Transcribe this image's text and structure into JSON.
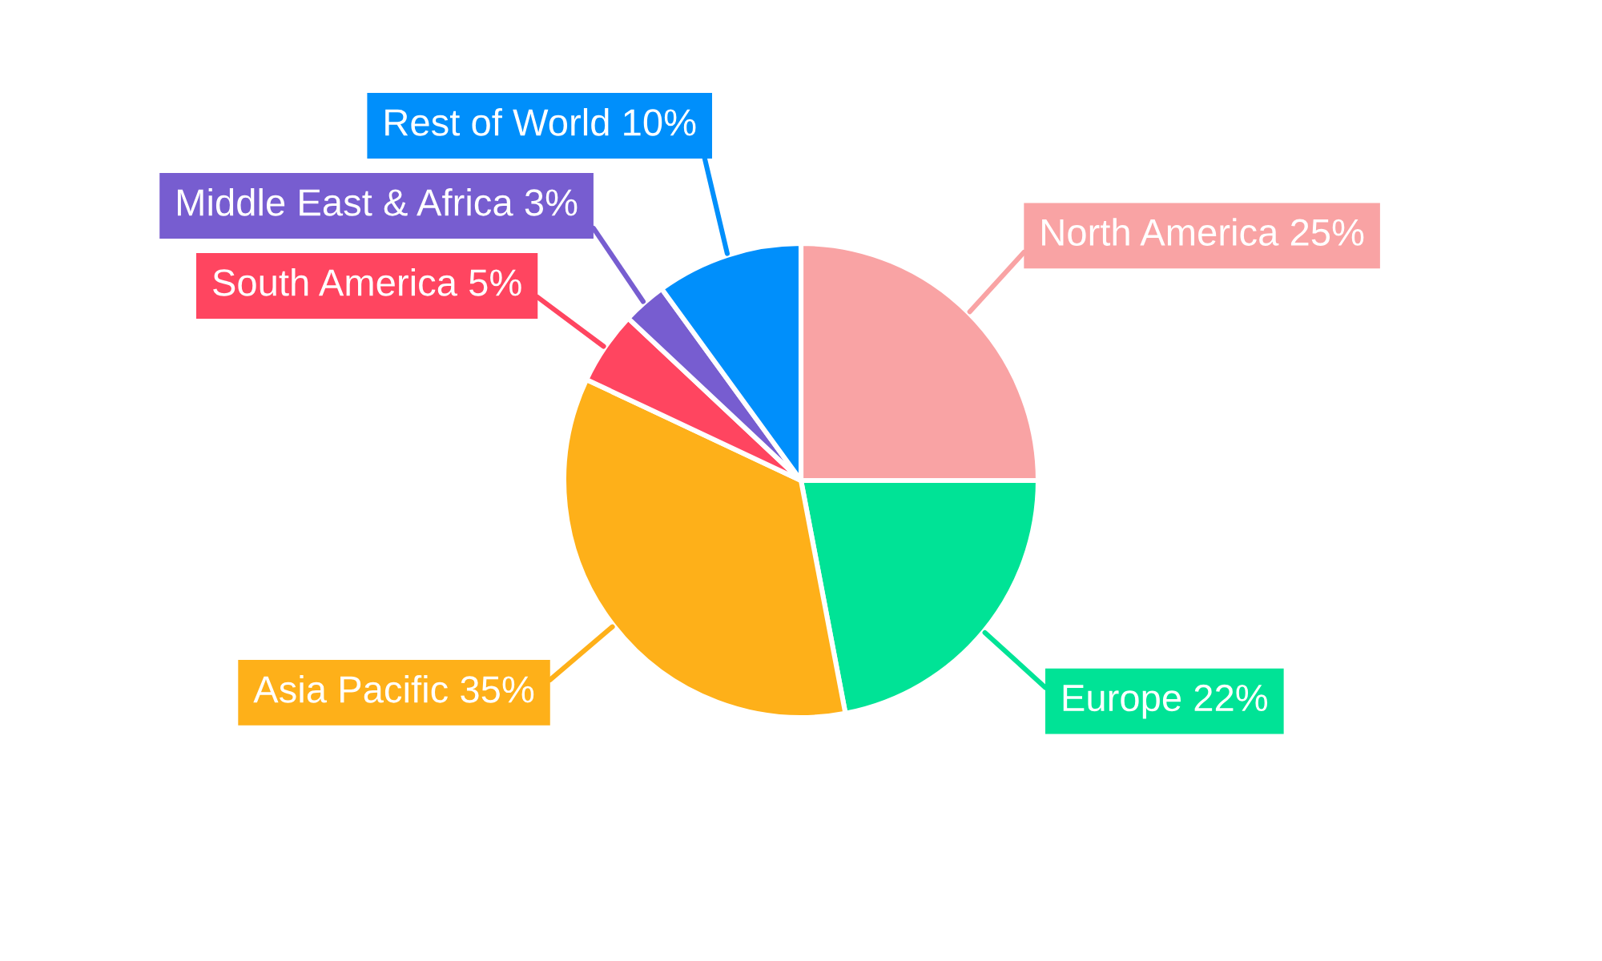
{
  "chart_data": {
    "type": "pie",
    "categories": [
      "North America",
      "Europe",
      "Asia Pacific",
      "South America",
      "Middle East & Africa",
      "Rest of World"
    ],
    "values": [
      25,
      22,
      35,
      5,
      3,
      10
    ],
    "value_labels": [
      "25%",
      "22%",
      "35%",
      "5%",
      "3%",
      "10%"
    ],
    "colors": [
      "#f9a3a4",
      "#00e396",
      "#feb019",
      "#ff4560",
      "#775dd0",
      "#008ffb"
    ]
  }
}
